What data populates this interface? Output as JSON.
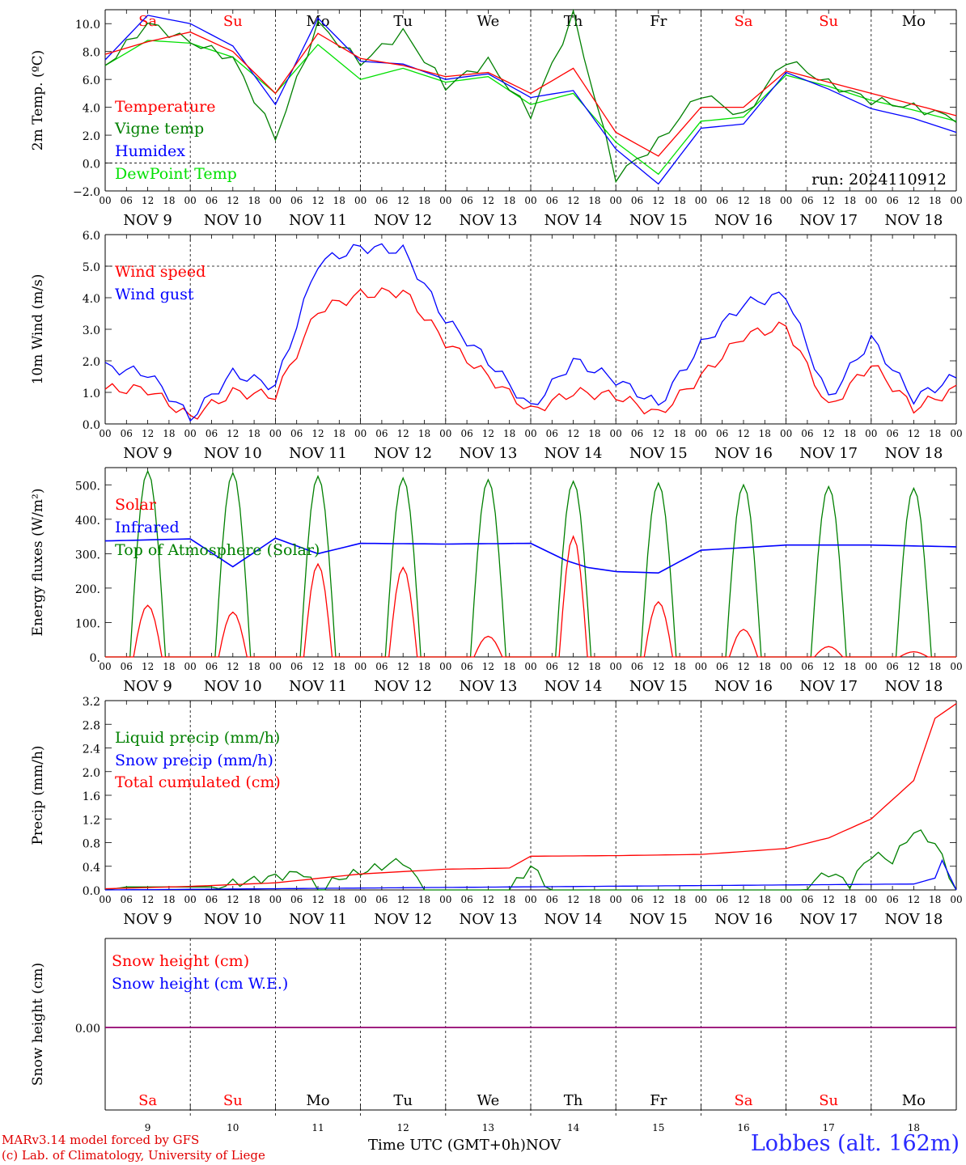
{
  "footer": {
    "model_line1": "MARv3.14 model forced by GFS",
    "model_line2": "(c) Lab. of Climatology, University of Liege",
    "xaxis_title": "Time UTC (GMT+0h)",
    "month_label": "NOV",
    "station": "Lobbes (alt. 162m)"
  },
  "colors": {
    "red": "#ff0000",
    "green": "#008000",
    "blue": "#0000ff",
    "lightgreen": "#00e000",
    "purple": "#800080"
  },
  "chart_data": [
    {
      "type": "line",
      "ylabel": "2m Temp. (ºC)",
      "ylim": [
        -2,
        11
      ],
      "yticks": [
        "10.0",
        "8.0",
        "6.0",
        "4.0",
        "2.0",
        "0.0",
        "−2.0"
      ],
      "ytick_values": [
        10,
        8,
        6,
        4,
        2,
        0,
        -2
      ],
      "dashed_y": [
        0
      ],
      "top_days": [
        {
          "label": "Sa",
          "color": "#ff0000"
        },
        {
          "label": "Su",
          "color": "#ff0000"
        },
        {
          "label": "Mo",
          "color": "#000000"
        },
        {
          "label": "Tu",
          "color": "#000000"
        },
        {
          "label": "We",
          "color": "#000000"
        },
        {
          "label": "Th",
          "color": "#000000"
        },
        {
          "label": "Fr",
          "color": "#000000"
        },
        {
          "label": "Sa",
          "color": "#ff0000"
        },
        {
          "label": "Su",
          "color": "#ff0000"
        },
        {
          "label": "Mo",
          "color": "#000000"
        }
      ],
      "annotation": "run: 2024110912",
      "x_hours": [
        0,
        12,
        24,
        36,
        48,
        60,
        72,
        84,
        96,
        108,
        120,
        132,
        144,
        156,
        168,
        180,
        192,
        204,
        216,
        228,
        240
      ],
      "series": [
        {
          "name": "Temperature",
          "color": "#ff0000",
          "values": [
            7.8,
            8.7,
            9.4,
            8.0,
            5.0,
            9.3,
            7.5,
            7.0,
            6.2,
            6.5,
            5.0,
            6.8,
            2.2,
            0.5,
            4.0,
            4.0,
            6.6,
            5.8,
            5.0,
            4.2,
            3.4
          ]
        },
        {
          "name": "Vigne temp",
          "color": "#008000",
          "values": [
            7.0,
            10.0,
            8.7,
            7.5,
            1.8,
            10.0,
            7.2,
            9.4,
            5.5,
            7.3,
            3.5,
            10.6,
            -1.0,
            1.5,
            5.0,
            3.3,
            7.4,
            5.7,
            4.5,
            4.0,
            3.2
          ]
        },
        {
          "name": "Humidex",
          "color": "#0000ff",
          "values": [
            7.4,
            10.6,
            10.0,
            8.4,
            4.2,
            10.4,
            7.3,
            7.1,
            6.0,
            6.4,
            4.7,
            5.2,
            1.0,
            -1.5,
            2.5,
            2.8,
            6.5,
            5.3,
            3.9,
            3.2,
            2.2
          ]
        },
        {
          "name": "DewPoint Temp",
          "color": "#00e000",
          "values": [
            7.0,
            8.8,
            8.6,
            7.6,
            5.0,
            8.5,
            6.0,
            6.8,
            5.8,
            6.2,
            4.2,
            5.0,
            1.5,
            -0.8,
            3.0,
            3.3,
            6.3,
            5.5,
            4.5,
            3.8,
            3.0
          ]
        }
      ]
    },
    {
      "type": "line",
      "ylabel": "10m Wind (m/s)",
      "ylim": [
        0,
        6
      ],
      "yticks": [
        "6.0",
        "5.0",
        "4.0",
        "3.0",
        "2.0",
        "1.0",
        "0.0"
      ],
      "ytick_values": [
        6,
        5,
        4,
        3,
        2,
        1,
        0
      ],
      "dashed_y": [
        5
      ],
      "x_hours": [
        0,
        12,
        24,
        36,
        48,
        60,
        72,
        84,
        96,
        108,
        120,
        132,
        144,
        156,
        168,
        180,
        192,
        204,
        216,
        228,
        240
      ],
      "series": [
        {
          "name": "Wind speed",
          "color": "#ff0000",
          "values": [
            1.1,
            1.1,
            0.2,
            1.0,
            0.9,
            3.6,
            4.1,
            4.2,
            2.6,
            1.5,
            0.4,
            1.0,
            0.9,
            0.3,
            1.5,
            2.8,
            3.1,
            0.5,
            1.9,
            0.5,
            1.1
          ]
        },
        {
          "name": "Wind gust",
          "color": "#0000ff",
          "values": [
            1.8,
            1.6,
            0.2,
            1.6,
            1.2,
            5.1,
            5.6,
            5.5,
            3.3,
            2.0,
            0.5,
            2.0,
            1.4,
            0.6,
            2.5,
            3.8,
            4.1,
            0.8,
            2.7,
            0.8,
            1.5
          ]
        }
      ]
    },
    {
      "type": "line",
      "ylabel": "Energy fluxes (W/m²)",
      "ylim": [
        0,
        550
      ],
      "yticks": [
        "500.",
        "400.",
        "300.",
        "200.",
        "100.",
        "0."
      ],
      "ytick_values": [
        500,
        400,
        300,
        200,
        100,
        0
      ],
      "peak_hour": 12,
      "series": [
        {
          "name": "Solar",
          "color": "#ff0000",
          "daily_peaks": [
            150,
            130,
            270,
            260,
            60,
            350,
            160,
            80,
            30,
            15
          ]
        },
        {
          "name": "Infrared",
          "color": "#0000ff",
          "x_hours": [
            0,
            24,
            36,
            48,
            60,
            72,
            96,
            120,
            130,
            136,
            144,
            156,
            168,
            192,
            216,
            240
          ],
          "values": [
            337,
            343,
            262,
            345,
            300,
            330,
            328,
            330,
            280,
            260,
            248,
            244,
            310,
            325,
            325,
            320
          ]
        },
        {
          "name": "Top of Atmosphere (Solar)",
          "color": "#008000",
          "daily_peaks": [
            540,
            535,
            525,
            520,
            515,
            510,
            505,
            500,
            495,
            490
          ]
        }
      ]
    },
    {
      "type": "line",
      "ylabel": "Precip (mm/h)",
      "ylim": [
        0,
        3.2
      ],
      "yticks": [
        "3.2",
        "2.8",
        "2.4",
        "2.0",
        "1.6",
        "1.2",
        "0.8",
        "0.4",
        "0.0"
      ],
      "ytick_values": [
        3.2,
        2.8,
        2.4,
        2.0,
        1.6,
        1.2,
        0.8,
        0.4,
        0.0
      ],
      "series": [
        {
          "name": "Liquid precip (mm/h)",
          "color": "#008000",
          "x_hours": [
            0,
            6,
            30,
            56,
            60,
            66,
            84,
            90,
            96,
            114,
            120,
            126,
            132,
            196,
            204,
            210,
            216,
            222,
            228,
            234,
            240
          ],
          "values": [
            0.0,
            0.05,
            0.05,
            0.3,
            0.0,
            0.2,
            0.5,
            0.0,
            0.0,
            0.0,
            0.4,
            0.0,
            0.0,
            0.0,
            0.3,
            0.1,
            0.6,
            0.5,
            1.0,
            0.8,
            0.0
          ]
        },
        {
          "name": "Snow precip (mm/h)",
          "color": "#0000ff",
          "x_hours": [
            0,
            228,
            234,
            236,
            240
          ],
          "values": [
            0.0,
            0.1,
            0.2,
            0.5,
            0.0
          ]
        },
        {
          "name": "Total cumulated (cm)",
          "color": "#ff0000",
          "x_hours": [
            0,
            24,
            48,
            72,
            96,
            114,
            120,
            144,
            168,
            192,
            204,
            216,
            228,
            234,
            240
          ],
          "values": [
            0.02,
            0.06,
            0.12,
            0.27,
            0.35,
            0.37,
            0.57,
            0.58,
            0.6,
            0.7,
            0.88,
            1.2,
            1.85,
            2.9,
            3.15
          ]
        }
      ]
    },
    {
      "type": "line",
      "ylabel": "Snow height (cm)",
      "yticks": [
        "0.00"
      ],
      "series": [
        {
          "name": "Snow height (cm)",
          "color": "#ff0000",
          "values": [
            0,
            0
          ]
        },
        {
          "name": "Snow height (cm W.E.)",
          "color": "#0000ff",
          "values": [
            0,
            0
          ]
        }
      ],
      "bottom_days": [
        {
          "label": "Sa",
          "num": "9",
          "color": "#ff0000"
        },
        {
          "label": "Su",
          "num": "10",
          "color": "#ff0000"
        },
        {
          "label": "Mo",
          "num": "11",
          "color": "#000000"
        },
        {
          "label": "Tu",
          "num": "12",
          "color": "#000000"
        },
        {
          "label": "We",
          "num": "13",
          "color": "#000000"
        },
        {
          "label": "Th",
          "num": "14",
          "color": "#000000"
        },
        {
          "label": "Fr",
          "num": "15",
          "color": "#000000"
        },
        {
          "label": "Sa",
          "num": "16",
          "color": "#ff0000"
        },
        {
          "label": "Su",
          "num": "17",
          "color": "#ff0000"
        },
        {
          "label": "Mo",
          "num": "18",
          "color": "#000000"
        }
      ]
    }
  ],
  "date_labels": [
    "NOV  9",
    "NOV 10",
    "NOV 11",
    "NOV 12",
    "NOV 13",
    "NOV 14",
    "NOV 15",
    "NOV 16",
    "NOV 17",
    "NOV 18"
  ],
  "hour_labels": [
    "00",
    "06",
    "12",
    "18"
  ]
}
